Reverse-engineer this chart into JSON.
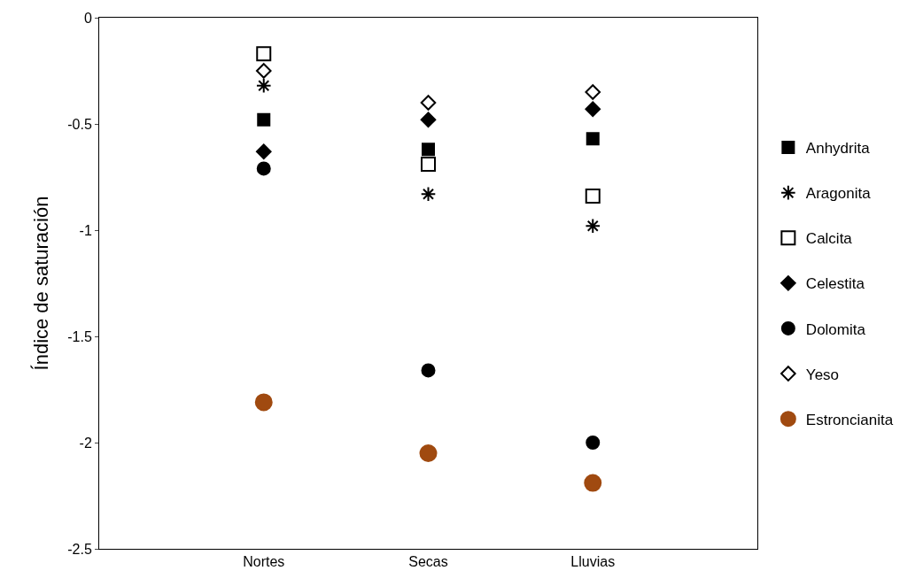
{
  "chart_data": {
    "type": "scatter",
    "ylabel": "Índice de saturación",
    "categories": [
      "Nortes",
      "Secas",
      "Lluvias"
    ],
    "ylim": [
      -2.5,
      0
    ],
    "yticks": [
      -2.5,
      -2,
      -1.5,
      -1,
      -0.5,
      0
    ],
    "legend": "right",
    "series": [
      {
        "name": "Anhydrita",
        "color": "#000000",
        "marker": "square",
        "values": [
          -0.48,
          -0.62,
          -0.57
        ]
      },
      {
        "name": "Aragonita",
        "color": "#000000",
        "marker": "cross",
        "values": [
          -0.32,
          -0.83,
          -0.98
        ]
      },
      {
        "name": "Calcita",
        "color": "#000000",
        "marker": "square-open",
        "values": [
          -0.17,
          -0.69,
          -0.84
        ]
      },
      {
        "name": "Celestita",
        "color": "#000000",
        "marker": "diamond",
        "values": [
          -0.63,
          -0.48,
          -0.43
        ]
      },
      {
        "name": "Dolomita",
        "color": "#000000",
        "marker": "circle",
        "values": [
          -0.71,
          -1.66,
          -2.0
        ]
      },
      {
        "name": "Yeso",
        "color": "#000000",
        "marker": "diamond-open",
        "values": [
          -0.25,
          -0.4,
          -0.35
        ]
      },
      {
        "name": "Estroncianita",
        "color": "#a04a10",
        "marker": "circle",
        "values": [
          -1.81,
          -2.05,
          -2.19
        ]
      }
    ]
  }
}
